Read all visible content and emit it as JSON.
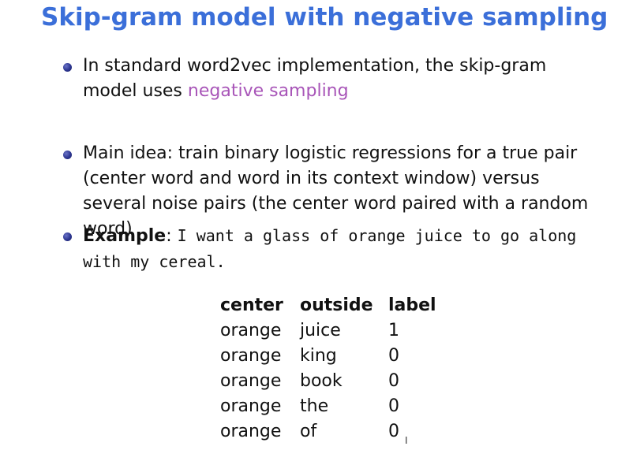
{
  "slide": {
    "title": "Skip-gram model with negative sampling"
  },
  "bullets": [
    {
      "text_a": "In standard word2vec implementation, the skip-gram model uses ",
      "highlight": "negative sampling"
    },
    {
      "text": "Main idea: train binary logistic regressions for a true pair (center word and word in its context window) versus several noise pairs (the center word paired with a random word)"
    },
    {
      "label": "Example",
      "sep": ": ",
      "code": "I want a glass of orange juice to go along with my cereal."
    }
  ],
  "table": {
    "headers": [
      "center",
      "outside",
      "label"
    ],
    "rows": [
      [
        "orange",
        "juice",
        "1"
      ],
      [
        "orange",
        "king",
        "0"
      ],
      [
        "orange",
        "book",
        "0"
      ],
      [
        "orange",
        "the",
        "0"
      ],
      [
        "orange",
        "of",
        "0"
      ]
    ]
  },
  "cursor": {
    "glyph": "I"
  },
  "colors": {
    "title": "#3b6fd9",
    "highlight": "#a855b8",
    "bullet_dot": "#2c3590"
  }
}
